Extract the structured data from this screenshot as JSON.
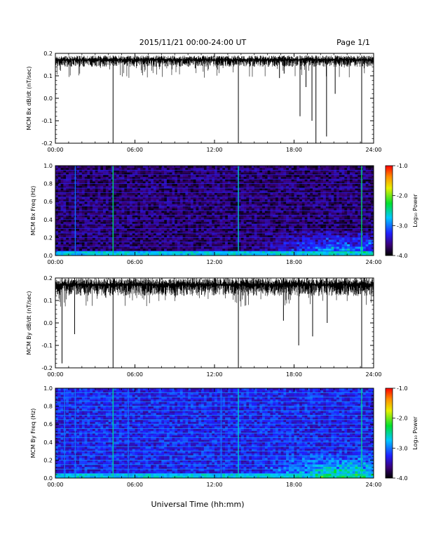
{
  "header": {
    "date_range": "2015/11/21  00:00-24:00 UT",
    "page": "Page 1/1"
  },
  "x_axis_label": "Universal Time (hh:mm)",
  "colorbar": {
    "label": "Log₁₀ Power",
    "ticks": [
      "-1.0",
      "-2.0",
      "-3.0",
      "-4.0"
    ],
    "range": [
      -4.0,
      -1.0
    ],
    "scheme": "rainbow (black-purple-blue-cyan-green-yellow-red)"
  },
  "chart_data": [
    {
      "type": "line",
      "ylabel": "MCM Bx dB/dt (nT/sec)",
      "x_ticks": [
        "00:00",
        "06:00",
        "12:00",
        "18:00",
        "24:00"
      ],
      "y_ticks": [
        "0.2",
        "0.1",
        "0.0",
        "-0.1",
        "-0.2"
      ],
      "xlim": [
        0,
        24
      ],
      "ylim": [
        -0.2,
        0.2
      ],
      "baseline_band": [
        0.14,
        0.19
      ],
      "spikes": [
        {
          "t": 4.35,
          "min": -0.2
        },
        {
          "t": 13.8,
          "min": -0.2
        },
        {
          "t": 16.9,
          "min": 0.09
        },
        {
          "t": 17.25,
          "min": 0.11
        },
        {
          "t": 18.45,
          "min": -0.08
        },
        {
          "t": 18.9,
          "min": 0.05
        },
        {
          "t": 19.35,
          "min": -0.1
        },
        {
          "t": 19.65,
          "min": -0.2
        },
        {
          "t": 20.45,
          "min": -0.17
        },
        {
          "t": 21.1,
          "min": 0.02
        },
        {
          "t": 23.1,
          "min": -0.2
        }
      ]
    },
    {
      "type": "heatmap",
      "ylabel": "MCM Bx Freq (Hz)",
      "x_ticks": [
        "00:00",
        "06:00",
        "12:00",
        "18:00",
        "24:00"
      ],
      "y_ticks": [
        "1.0",
        "0.8",
        "0.6",
        "0.4",
        "0.2",
        "0.0"
      ],
      "xlim": [
        0,
        24
      ],
      "ylim": [
        0.0,
        1.0
      ],
      "zlim": [
        -4.0,
        -1.0
      ],
      "background_level": -3.7,
      "harmonic_lines_hz": [
        0.05,
        0.1,
        0.15,
        0.2,
        0.25,
        0.3,
        0.35,
        0.4,
        0.45,
        0.5,
        0.55,
        0.6,
        0.65,
        0.7,
        0.75,
        0.8,
        0.85,
        0.9,
        0.95,
        1.0
      ],
      "vertical_events": [
        {
          "t": 1.5,
          "level": -3.0
        },
        {
          "t": 4.35,
          "level": -2.4
        },
        {
          "t": 13.8,
          "level": -2.6
        },
        {
          "t": 23.1,
          "level": -2.4
        }
      ],
      "enhanced_region": {
        "t_start": 15.0,
        "t_end": 24.0,
        "f_max": 0.3,
        "level": -2.8
      }
    },
    {
      "type": "line",
      "ylabel": "MCM By dB/dt (nT/sec)",
      "x_ticks": [
        "00:00",
        "06:00",
        "12:00",
        "18:00",
        "24:00"
      ],
      "y_ticks": [
        "0.2",
        "0.1",
        "0.0",
        "-0.1",
        "-0.2"
      ],
      "xlim": [
        0,
        24
      ],
      "ylim": [
        -0.2,
        0.2
      ],
      "baseline_band": [
        0.12,
        0.2
      ],
      "spikes": [
        {
          "t": 0.5,
          "min": -0.18
        },
        {
          "t": 1.45,
          "min": -0.05
        },
        {
          "t": 4.35,
          "min": -0.2
        },
        {
          "t": 13.8,
          "min": -0.2
        },
        {
          "t": 17.2,
          "min": 0.01
        },
        {
          "t": 18.35,
          "min": -0.1
        },
        {
          "t": 19.4,
          "min": -0.06
        },
        {
          "t": 20.5,
          "min": 0.0
        },
        {
          "t": 23.1,
          "min": -0.2
        }
      ]
    },
    {
      "type": "heatmap",
      "ylabel": "MCM By Freq (Hz)",
      "x_ticks": [
        "00:00",
        "06:00",
        "12:00",
        "18:00",
        "24:00"
      ],
      "y_ticks": [
        "1.0",
        "0.8",
        "0.6",
        "0.4",
        "0.2",
        "0.0"
      ],
      "xlim": [
        0,
        24
      ],
      "ylim": [
        0.0,
        1.0
      ],
      "zlim": [
        -4.0,
        -1.0
      ],
      "background_level": -3.3,
      "harmonic_lines_hz": [
        0.05,
        0.1,
        0.15,
        0.2,
        0.25,
        0.3,
        0.35,
        0.4,
        0.45,
        0.5,
        0.55,
        0.6,
        0.65,
        0.7,
        0.75,
        0.8,
        0.85,
        0.9,
        0.95,
        1.0
      ],
      "vertical_events": [
        {
          "t": 0.7,
          "level": -3.0
        },
        {
          "t": 1.5,
          "level": -3.0
        },
        {
          "t": 4.35,
          "level": -2.5
        },
        {
          "t": 5.5,
          "level": -3.0
        },
        {
          "t": 12.5,
          "level": -3.0
        },
        {
          "t": 13.8,
          "level": -2.6
        },
        {
          "t": 23.1,
          "level": -2.5
        }
      ],
      "enhanced_region": {
        "t_start": 15.0,
        "t_end": 24.0,
        "f_max": 0.3,
        "level": -2.5
      }
    }
  ]
}
